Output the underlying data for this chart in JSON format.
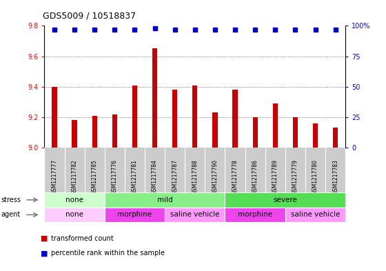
{
  "title": "GDS5009 / 10518837",
  "samples": [
    "GSM1217777",
    "GSM1217782",
    "GSM1217785",
    "GSM1217776",
    "GSM1217781",
    "GSM1217784",
    "GSM1217787",
    "GSM1217788",
    "GSM1217790",
    "GSM1217778",
    "GSM1217786",
    "GSM1217789",
    "GSM1217779",
    "GSM1217780",
    "GSM1217783"
  ],
  "bar_values": [
    9.4,
    9.18,
    9.21,
    9.22,
    9.41,
    9.65,
    9.38,
    9.41,
    9.23,
    9.38,
    9.2,
    9.29,
    9.2,
    9.16,
    9.13
  ],
  "percentile_values": [
    97,
    97,
    97,
    97,
    97,
    98,
    97,
    97,
    97,
    97,
    97,
    97,
    97,
    97,
    97
  ],
  "bar_color": "#cc0000",
  "percentile_color": "#0000cc",
  "ylim_left": [
    9.0,
    9.8
  ],
  "ylim_right": [
    0,
    100
  ],
  "yticks_left": [
    9.0,
    9.2,
    9.4,
    9.6,
    9.8
  ],
  "yticks_right": [
    0,
    25,
    50,
    75,
    100
  ],
  "stress_groups": [
    {
      "label": "none",
      "start": 0,
      "end": 3,
      "color": "#ccffcc"
    },
    {
      "label": "mild",
      "start": 3,
      "end": 9,
      "color": "#88ee88"
    },
    {
      "label": "severe",
      "start": 9,
      "end": 15,
      "color": "#55dd55"
    }
  ],
  "agent_groups": [
    {
      "label": "none",
      "start": 0,
      "end": 3,
      "color": "#ffccff"
    },
    {
      "label": "morphine",
      "start": 3,
      "end": 6,
      "color": "#ee44ee"
    },
    {
      "label": "saline vehicle",
      "start": 6,
      "end": 9,
      "color": "#ff99ff"
    },
    {
      "label": "morphine",
      "start": 9,
      "end": 12,
      "color": "#ee44ee"
    },
    {
      "label": "saline vehicle",
      "start": 12,
      "end": 15,
      "color": "#ff99ff"
    }
  ],
  "legend_items": [
    {
      "label": "transformed count",
      "color": "#cc0000"
    },
    {
      "label": "percentile rank within the sample",
      "color": "#0000cc"
    }
  ],
  "background_color": "#ffffff",
  "chart_bg": "#ffffff",
  "label_area_color": "#cccccc",
  "grid_color": "#555555"
}
